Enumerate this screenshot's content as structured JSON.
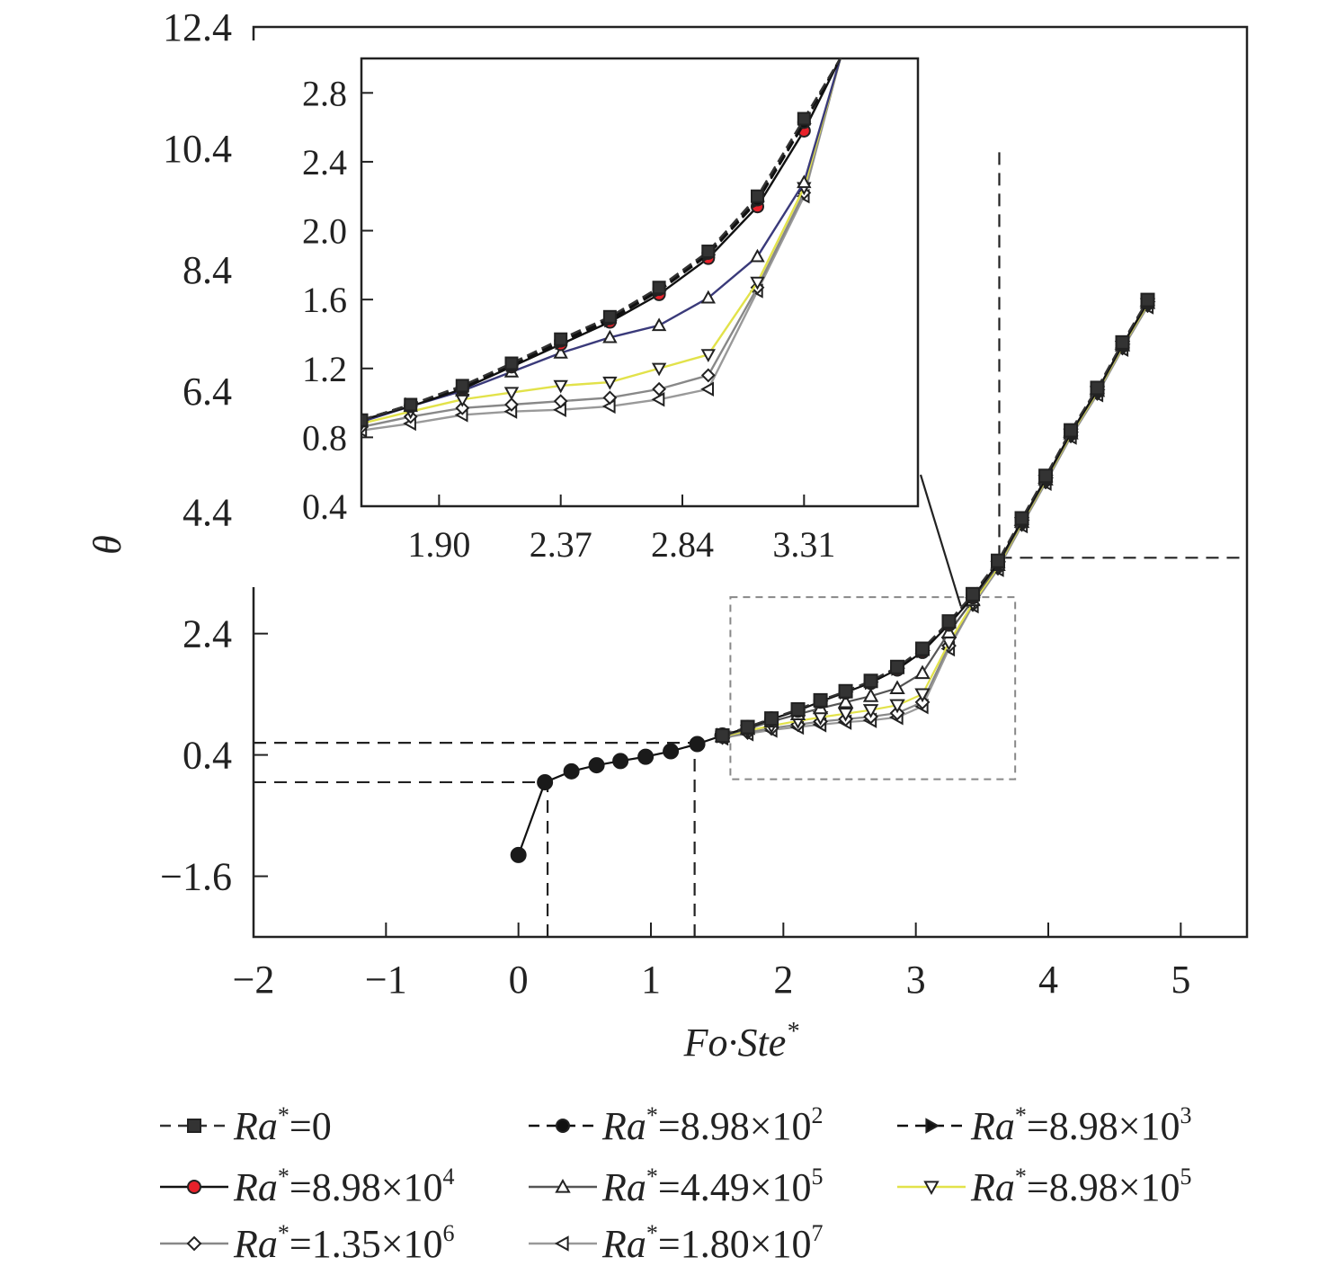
{
  "chart_data": [
    {
      "id": "main",
      "type": "line",
      "xlabel": "Fo·Ste",
      "xlabel_sup": "*",
      "ylabel": "θ",
      "xlim": [
        -2,
        5.5
      ],
      "ylim": [
        -2.6,
        12.4
      ],
      "x_ticks": [
        -2,
        -1,
        0,
        1,
        2,
        3,
        4,
        5
      ],
      "x_tick_labels": [
        "−2",
        "−1",
        "0",
        "1",
        "2",
        "3",
        "4",
        "5"
      ],
      "y_ticks": [
        -1.6,
        0.4,
        2.4,
        4.4,
        6.4,
        8.4,
        10.4,
        12.4
      ],
      "y_tick_labels": [
        "−1.6",
        "0.4",
        "2.4",
        "4.4",
        "6.4",
        "8.4",
        "10.4",
        "12.4"
      ],
      "grid": false,
      "legend_position": "below",
      "common_curve": {
        "x": [
          0,
          0.2,
          0.4,
          0.59,
          0.77,
          0.96,
          1.15,
          1.35,
          1.54
        ],
        "y": [
          -1.25,
          -0.05,
          0.13,
          0.23,
          0.3,
          0.37,
          0.46,
          0.58,
          0.72
        ]
      },
      "series": [
        {
          "name": "Ra*=0",
          "marker": "square",
          "color": "#333333",
          "dash": true,
          "x": [
            1.54,
            1.73,
            1.91,
            2.11,
            2.28,
            2.47,
            2.66,
            2.86,
            3.05,
            3.25,
            3.43,
            3.62,
            3.8,
            3.98,
            4.17,
            4.37,
            4.56,
            4.75
          ],
          "y": [
            0.72,
            0.86,
            1.0,
            1.15,
            1.3,
            1.45,
            1.62,
            1.85,
            2.15,
            2.6,
            3.05,
            3.6,
            4.3,
            5.0,
            5.75,
            6.45,
            7.2,
            7.9
          ]
        },
        {
          "name": "Ra*=8.98×10²",
          "marker": "circle",
          "color": "#111111",
          "dash": true,
          "x": [
            1.54,
            1.73,
            1.91,
            2.11,
            2.28,
            2.47,
            2.66,
            2.86,
            3.05,
            3.25,
            3.43,
            3.62,
            3.8,
            3.98,
            4.17,
            4.37,
            4.56,
            4.75
          ],
          "y": [
            0.72,
            0.86,
            1.0,
            1.14,
            1.29,
            1.44,
            1.61,
            1.84,
            2.13,
            2.58,
            3.03,
            3.58,
            4.28,
            4.98,
            5.73,
            6.43,
            7.18,
            7.88
          ]
        },
        {
          "name": "Ra*=8.98×10³",
          "marker": "triangle-right",
          "color": "#111111",
          "dash": true,
          "x": [
            1.54,
            1.73,
            1.91,
            2.11,
            2.28,
            2.47,
            2.66,
            2.86,
            3.05,
            3.25,
            3.43,
            3.62,
            3.8,
            3.98,
            4.17,
            4.37,
            4.56,
            4.75
          ],
          "y": [
            0.72,
            0.85,
            0.99,
            1.14,
            1.29,
            1.44,
            1.6,
            1.83,
            2.12,
            2.57,
            3.02,
            3.58,
            4.27,
            4.97,
            5.72,
            6.42,
            7.17,
            7.87
          ]
        },
        {
          "name": "Ra*=8.98×10⁴",
          "marker": "circle",
          "color": "#111111",
          "marker_fill": "#e8212a",
          "x": [
            1.54,
            1.73,
            1.91,
            2.11,
            2.28,
            2.47,
            2.66,
            2.86,
            3.05,
            3.25,
            3.43,
            3.62,
            3.8,
            3.98,
            4.17,
            4.37,
            4.56,
            4.75
          ],
          "y": [
            0.72,
            0.85,
            0.99,
            1.13,
            1.28,
            1.43,
            1.59,
            1.81,
            2.1,
            2.55,
            3.0,
            3.56,
            4.26,
            4.96,
            5.71,
            6.41,
            7.16,
            7.86
          ]
        },
        {
          "name": "Ra*=4.49×10⁵",
          "marker": "triangle-up",
          "color": "#555555",
          "marker_fill": "#ffffff",
          "x": [
            1.54,
            1.73,
            1.91,
            2.11,
            2.28,
            2.47,
            2.66,
            2.86,
            3.05,
            3.25,
            3.43,
            3.62,
            3.8,
            3.98,
            4.17,
            4.37,
            4.56,
            4.75
          ],
          "y": [
            0.71,
            0.83,
            0.95,
            1.07,
            1.17,
            1.27,
            1.37,
            1.5,
            1.75,
            2.42,
            2.95,
            3.53,
            4.24,
            4.94,
            5.7,
            6.4,
            7.15,
            7.85
          ]
        },
        {
          "name": "Ra*=8.98×10⁵",
          "marker": "triangle-down",
          "color": "#e2e24a",
          "marker_fill": "#ffffff",
          "x": [
            1.54,
            1.73,
            1.91,
            2.11,
            2.28,
            2.47,
            2.66,
            2.86,
            3.05,
            3.25,
            3.43,
            3.62,
            3.8,
            3.98,
            4.17,
            4.37,
            4.56,
            4.75
          ],
          "y": [
            0.7,
            0.8,
            0.88,
            0.96,
            1.02,
            1.08,
            1.14,
            1.22,
            1.4,
            2.25,
            2.9,
            3.5,
            4.22,
            4.92,
            5.68,
            6.38,
            7.13,
            7.83
          ]
        },
        {
          "name": "Ra*=1.35×10⁶",
          "marker": "diamond",
          "color": "#888888",
          "marker_fill": "#ffffff",
          "x": [
            1.54,
            1.73,
            1.91,
            2.11,
            2.28,
            2.47,
            2.66,
            2.86,
            3.05,
            3.25,
            3.43,
            3.62,
            3.8,
            3.98,
            4.17,
            4.37,
            4.56,
            4.75
          ],
          "y": [
            0.69,
            0.77,
            0.84,
            0.9,
            0.95,
            0.99,
            1.03,
            1.09,
            1.27,
            2.2,
            2.88,
            3.48,
            4.2,
            4.9,
            5.66,
            6.36,
            7.11,
            7.81
          ]
        },
        {
          "name": "Ra*=1.80×10⁷",
          "marker": "triangle-left",
          "color": "#999999",
          "marker_fill": "#ffffff",
          "x": [
            1.54,
            1.73,
            1.91,
            2.11,
            2.28,
            2.47,
            2.66,
            2.86,
            3.05,
            3.25,
            3.43,
            3.62,
            3.8,
            3.98,
            4.17,
            4.37,
            4.56,
            4.75
          ],
          "y": [
            0.68,
            0.75,
            0.81,
            0.86,
            0.9,
            0.94,
            0.97,
            1.02,
            1.2,
            2.15,
            2.86,
            3.46,
            4.18,
            4.88,
            5.64,
            6.34,
            7.09,
            7.79
          ]
        }
      ],
      "reference_lines": [
        {
          "orientation": "horizontal",
          "value": 0.6,
          "from": -2,
          "to": 1.33
        },
        {
          "orientation": "horizontal",
          "value": -0.05,
          "from": -2,
          "to": 0.22
        },
        {
          "orientation": "vertical",
          "value": 0.22,
          "from": -2.6,
          "to": -0.05
        },
        {
          "orientation": "vertical",
          "value": 1.33,
          "from": -2.6,
          "to": 0.6
        },
        {
          "orientation": "vertical",
          "value": 3.63,
          "from": 3.65,
          "to": 10.4
        },
        {
          "orientation": "horizontal",
          "value": 3.65,
          "from": 3.63,
          "to": 5.5
        }
      ],
      "zoom_region": {
        "x": [
          1.6,
          3.75
        ],
        "y": [
          0.0,
          3.0
        ]
      }
    },
    {
      "id": "inset",
      "type": "line",
      "xlim": [
        1.6,
        3.75
      ],
      "ylim": [
        0.4,
        3.0
      ],
      "x_ticks": [
        1.9,
        2.37,
        2.84,
        3.31
      ],
      "x_tick_labels": [
        "1.90",
        "2.37",
        "2.84",
        "3.31"
      ],
      "y_ticks": [
        0.4,
        0.8,
        1.2,
        1.6,
        2.0,
        2.4,
        2.8
      ],
      "y_tick_labels": [
        "0.4",
        "0.8",
        "1.2",
        "1.6",
        "2.0",
        "2.4",
        "2.8"
      ],
      "grid": false,
      "series": [
        {
          "name": "Ra*=0",
          "marker": "square",
          "color": "#333333",
          "dash": true,
          "x": [
            1.6,
            1.79,
            1.99,
            2.18,
            2.37,
            2.56,
            2.75,
            2.94,
            3.13,
            3.31,
            3.45
          ],
          "y": [
            0.9,
            0.99,
            1.1,
            1.23,
            1.37,
            1.5,
            1.67,
            1.88,
            2.2,
            2.65,
            3.0
          ]
        },
        {
          "name": "Ra*=8.98×10²",
          "marker": "circle",
          "color": "#111111",
          "dash": true,
          "x": [
            1.6,
            1.79,
            1.99,
            2.18,
            2.37,
            2.56,
            2.75,
            2.94,
            3.13,
            3.31,
            3.45
          ],
          "y": [
            0.9,
            0.99,
            1.09,
            1.22,
            1.36,
            1.49,
            1.66,
            1.87,
            2.18,
            2.63,
            3.0
          ]
        },
        {
          "name": "Ra*=8.98×10³",
          "marker": "triangle-right",
          "color": "#111111",
          "dash": true,
          "x": [
            1.6,
            1.79,
            1.99,
            2.18,
            2.37,
            2.56,
            2.75,
            2.94,
            3.13,
            3.31,
            3.45
          ],
          "y": [
            0.9,
            0.99,
            1.09,
            1.22,
            1.35,
            1.48,
            1.65,
            1.86,
            2.17,
            2.62,
            3.0
          ]
        },
        {
          "name": "Ra*=8.98×10⁴",
          "marker": "circle",
          "color": "#111111",
          "marker_fill": "#e8212a",
          "x": [
            1.6,
            1.79,
            1.99,
            2.18,
            2.37,
            2.56,
            2.75,
            2.94,
            3.13,
            3.31,
            3.45
          ],
          "y": [
            0.9,
            0.98,
            1.08,
            1.21,
            1.34,
            1.47,
            1.63,
            1.84,
            2.14,
            2.58,
            3.0
          ]
        },
        {
          "name": "Ra*=4.49×10⁵",
          "marker": "triangle-up",
          "color": "#555555",
          "marker_fill": "#ffffff",
          "x": [
            1.6,
            1.79,
            1.99,
            2.18,
            2.37,
            2.56,
            2.75,
            2.94,
            3.13,
            3.31,
            3.45
          ],
          "y": [
            0.89,
            0.98,
            1.07,
            1.18,
            1.29,
            1.38,
            1.45,
            1.61,
            1.85,
            2.28,
            3.0
          ]
        },
        {
          "name": "Ra*=8.98×10⁵",
          "marker": "triangle-down",
          "color": "#e2e24a",
          "marker_fill": "#ffffff",
          "x": [
            1.6,
            1.79,
            1.99,
            2.18,
            2.37,
            2.56,
            2.75,
            2.94,
            3.13,
            3.31,
            3.45
          ],
          "y": [
            0.88,
            0.95,
            1.02,
            1.06,
            1.1,
            1.12,
            1.2,
            1.28,
            1.7,
            2.25,
            3.0
          ]
        },
        {
          "name": "Ra*=1.35×10⁶",
          "marker": "diamond",
          "color": "#888888",
          "marker_fill": "#ffffff",
          "x": [
            1.6,
            1.79,
            1.99,
            2.18,
            2.37,
            2.56,
            2.75,
            2.94,
            3.13,
            3.31,
            3.45
          ],
          "y": [
            0.86,
            0.92,
            0.97,
            0.99,
            1.01,
            1.03,
            1.08,
            1.16,
            1.67,
            2.22,
            3.0
          ]
        },
        {
          "name": "Ra*=1.80×10⁷",
          "marker": "triangle-left",
          "color": "#999999",
          "marker_fill": "#ffffff",
          "x": [
            1.6,
            1.79,
            1.99,
            2.18,
            2.37,
            2.56,
            2.75,
            2.94,
            3.13,
            3.31,
            3.45
          ],
          "y": [
            0.84,
            0.88,
            0.93,
            0.95,
            0.96,
            0.98,
            1.02,
            1.08,
            1.65,
            2.2,
            3.0
          ]
        }
      ]
    }
  ],
  "legend": [
    {
      "prefix": "Ra",
      "sup1": "*",
      "text": "=0",
      "sup2": ""
    },
    {
      "prefix": "Ra",
      "sup1": "*",
      "text": "=8.98×10",
      "sup2": "2"
    },
    {
      "prefix": "Ra",
      "sup1": "*",
      "text": "=8.98×10",
      "sup2": "3"
    },
    {
      "prefix": "Ra",
      "sup1": "*",
      "text": "=8.98×10",
      "sup2": "4"
    },
    {
      "prefix": "Ra",
      "sup1": "*",
      "text": "=4.49×10",
      "sup2": "5"
    },
    {
      "prefix": "Ra",
      "sup1": "*",
      "text": "=8.98×10",
      "sup2": "5"
    },
    {
      "prefix": "Ra",
      "sup1": "*",
      "text": "=1.35×10",
      "sup2": "6"
    },
    {
      "prefix": "Ra",
      "sup1": "*",
      "text": "=1.80×10",
      "sup2": "7"
    }
  ]
}
